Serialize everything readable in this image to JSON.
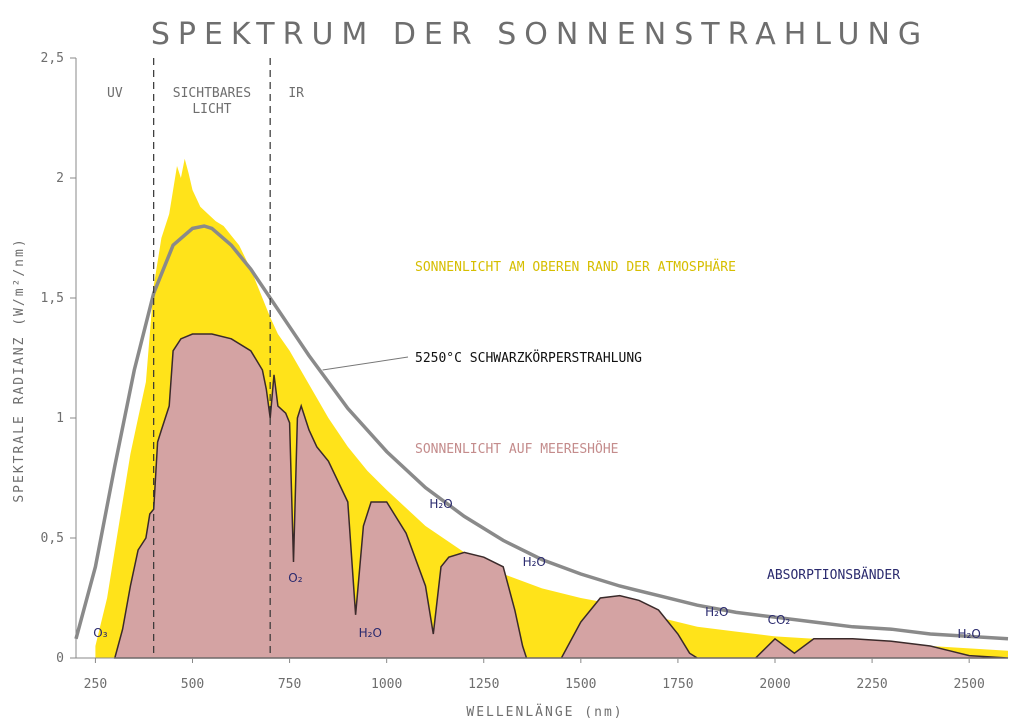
{
  "chart_data": {
    "type": "area",
    "title": "SPEKTRUM DER SONNENSTRAHLUNG",
    "xlabel": "WELLENLÄNGE (nm)",
    "ylabel": "SPEKTRALE RADIANZ (W/m²/nm)",
    "xlim": [
      200,
      2600
    ],
    "ylim": [
      0,
      2.5
    ],
    "x_ticks": [
      250,
      500,
      750,
      1000,
      1250,
      1500,
      1750,
      2000,
      2250,
      2500
    ],
    "x_tick_labels": [
      "250",
      "500",
      "750",
      "1000",
      "1250",
      "1500",
      "1750",
      "2000",
      "2250",
      "2500"
    ],
    "y_ticks": [
      0,
      0.5,
      1,
      1.5,
      2,
      2.5
    ],
    "y_tick_labels": [
      "0",
      "0,5",
      "1",
      "1,5",
      "2",
      "2,5"
    ],
    "regions": [
      {
        "label": "UV",
        "lines": [
          "UV"
        ],
        "x_start": 200,
        "x_end": 400
      },
      {
        "label": "SICHTBARES LICHT",
        "lines": [
          "SICHTBARES",
          "LICHT"
        ],
        "x_start": 400,
        "x_end": 700
      },
      {
        "label": "IR",
        "lines": [
          "IR"
        ],
        "x_start": 700,
        "x_end": 2600
      }
    ],
    "series": [
      {
        "name": "SONNENLICHT AM OBEREN RAND DER ATMOSPHÄRE",
        "color": "#ffe31a",
        "x": [
          250,
          280,
          300,
          320,
          340,
          360,
          380,
          400,
          420,
          440,
          450,
          460,
          470,
          480,
          490,
          500,
          520,
          540,
          560,
          580,
          600,
          620,
          650,
          680,
          700,
          720,
          750,
          800,
          850,
          900,
          950,
          1000,
          1100,
          1200,
          1300,
          1400,
          1500,
          1600,
          1700,
          1800,
          1900,
          2000,
          2100,
          2200,
          2300,
          2400,
          2500,
          2600
        ],
        "y": [
          0.05,
          0.25,
          0.45,
          0.65,
          0.85,
          1.0,
          1.15,
          1.55,
          1.75,
          1.85,
          1.95,
          2.05,
          2.0,
          2.08,
          2.02,
          1.95,
          1.88,
          1.85,
          1.82,
          1.8,
          1.76,
          1.72,
          1.62,
          1.5,
          1.42,
          1.35,
          1.28,
          1.14,
          1.0,
          0.88,
          0.78,
          0.7,
          0.55,
          0.44,
          0.35,
          0.29,
          0.25,
          0.22,
          0.17,
          0.13,
          0.11,
          0.09,
          0.08,
          0.07,
          0.06,
          0.05,
          0.04,
          0.03
        ]
      },
      {
        "name": "5250°C SCHWARZKÖRPERSTRAHLUNG",
        "color": "#8a8a8a",
        "x": [
          200,
          250,
          300,
          350,
          400,
          450,
          500,
          530,
          550,
          600,
          650,
          700,
          750,
          800,
          900,
          1000,
          1100,
          1200,
          1300,
          1400,
          1500,
          1600,
          1700,
          1800,
          1900,
          2000,
          2100,
          2200,
          2300,
          2400,
          2500,
          2600
        ],
        "y": [
          0.08,
          0.38,
          0.8,
          1.2,
          1.52,
          1.72,
          1.79,
          1.8,
          1.79,
          1.72,
          1.62,
          1.5,
          1.38,
          1.26,
          1.04,
          0.86,
          0.71,
          0.59,
          0.49,
          0.41,
          0.35,
          0.3,
          0.26,
          0.22,
          0.19,
          0.17,
          0.15,
          0.13,
          0.12,
          0.1,
          0.09,
          0.08
        ]
      },
      {
        "name": "SONNENLICHT AUF MEERESHÖHE",
        "color": "#d4a3a3",
        "x": [
          300,
          320,
          340,
          360,
          380,
          390,
          400,
          410,
          420,
          430,
          440,
          450,
          470,
          500,
          550,
          600,
          650,
          680,
          690,
          700,
          710,
          720,
          740,
          750,
          760,
          770,
          780,
          800,
          820,
          850,
          900,
          920,
          940,
          960,
          1000,
          1050,
          1100,
          1120,
          1140,
          1160,
          1200,
          1250,
          1300,
          1330,
          1350,
          1360,
          1450,
          1500,
          1550,
          1600,
          1650,
          1700,
          1750,
          1780,
          1800,
          1950,
          2000,
          2050,
          2100,
          2200,
          2300,
          2400,
          2450,
          2500,
          2600
        ],
        "y": [
          0.0,
          0.12,
          0.3,
          0.45,
          0.5,
          0.6,
          0.62,
          0.9,
          0.95,
          1.0,
          1.05,
          1.28,
          1.33,
          1.35,
          1.35,
          1.33,
          1.28,
          1.2,
          1.12,
          1.0,
          1.18,
          1.05,
          1.02,
          0.98,
          0.4,
          1.0,
          1.05,
          0.95,
          0.88,
          0.82,
          0.65,
          0.18,
          0.55,
          0.65,
          0.65,
          0.52,
          0.3,
          0.1,
          0.38,
          0.42,
          0.44,
          0.42,
          0.38,
          0.2,
          0.05,
          0.0,
          0.0,
          0.15,
          0.25,
          0.26,
          0.24,
          0.2,
          0.1,
          0.02,
          0.0,
          0.0,
          0.08,
          0.02,
          0.08,
          0.08,
          0.07,
          0.05,
          0.03,
          0.01,
          0.0
        ]
      }
    ],
    "labels": {
      "toa": "SONNENLICHT AM OBEREN RAND DER ATMOSPHÄRE",
      "blackbody": "5250°C SCHWARZKÖRPERSTRAHLUNG",
      "sea": "SONNENLICHT AUF MEERESHÖHE",
      "absorption": "ABSORPTIONSBÄNDER"
    },
    "absorption_bands": [
      {
        "label": "O₃",
        "x": 250
      },
      {
        "label": "O₂",
        "x": 765
      },
      {
        "label": "H₂O",
        "x": 950
      },
      {
        "label": "H₂O",
        "x": 1140
      },
      {
        "label": "H₂O",
        "x": 1380
      },
      {
        "label": "H₂O",
        "x": 1850
      },
      {
        "label": "CO₂",
        "x": 2010
      },
      {
        "label": "H₂O",
        "x": 2500
      }
    ],
    "colors": {
      "toa": "#ffe31a",
      "sea": "#d4a3a3",
      "blackbody": "#8a8a8a",
      "absorption_text": "#2a2a6e",
      "axis": "#6e6e6e"
    }
  }
}
